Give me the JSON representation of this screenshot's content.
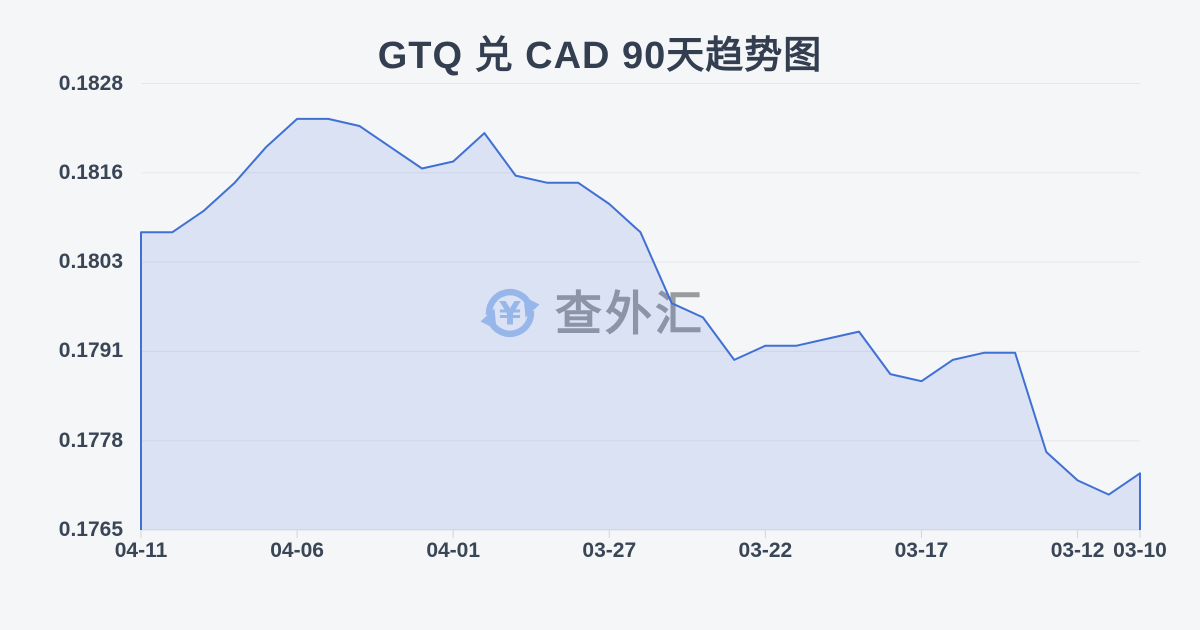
{
  "page": {
    "background": "#f5f6f8"
  },
  "chart": {
    "title": "GTQ 兑 CAD 90天趋势图",
    "watermark": {
      "icon": "currency-exchange-icon",
      "text": "查外汇",
      "icon_color": "#a6c3ee",
      "text_color": "#999b9f"
    },
    "colors": {
      "line": "#4170d4",
      "fill_rgba": "rgba(65,112,212,0.15)",
      "grid": "#e7e8ea",
      "baseline": "#dfe0e3",
      "tick": "#d3d5d9",
      "label": "#3a4656",
      "title": "#333e50"
    }
  },
  "chart_data": {
    "type": "area",
    "title": "GTQ 兑 CAD 90天趋势图",
    "x": [
      "04-11",
      "04-10",
      "04-09",
      "04-08",
      "04-07",
      "04-06",
      "04-05",
      "04-04",
      "04-03",
      "04-02",
      "04-01",
      "03-31",
      "03-30",
      "03-29",
      "03-28",
      "03-27",
      "03-26",
      "03-25",
      "03-24",
      "03-23",
      "03-22",
      "03-21",
      "03-20",
      "03-19",
      "03-18",
      "03-17",
      "03-16",
      "03-15",
      "03-14",
      "03-13",
      "03-12",
      "03-11",
      "03-10"
    ],
    "values": [
      0.1807,
      0.1807,
      0.181,
      0.1814,
      0.1819,
      0.1823,
      0.1823,
      0.1822,
      0.1819,
      0.1816,
      0.1817,
      0.1821,
      0.1815,
      0.1814,
      0.1814,
      0.1811,
      0.1807,
      0.1797,
      0.1795,
      0.1789,
      0.1791,
      0.1791,
      0.1792,
      0.1793,
      0.1787,
      0.1786,
      0.1789,
      0.179,
      0.179,
      0.1776,
      0.1772,
      0.177,
      0.1773
    ],
    "x_tick_labels": [
      "04-11",
      "04-06",
      "04-01",
      "03-27",
      "03-22",
      "03-17",
      "03-12",
      "03-10"
    ],
    "y_tick_labels": [
      "0.1828",
      "0.1816",
      "0.1803",
      "0.1791",
      "0.1778",
      "0.1765"
    ],
    "ylim": [
      0.1765,
      0.1828
    ],
    "x_axis_reversed_time": true,
    "grid": "horizontal",
    "legend": "none"
  }
}
